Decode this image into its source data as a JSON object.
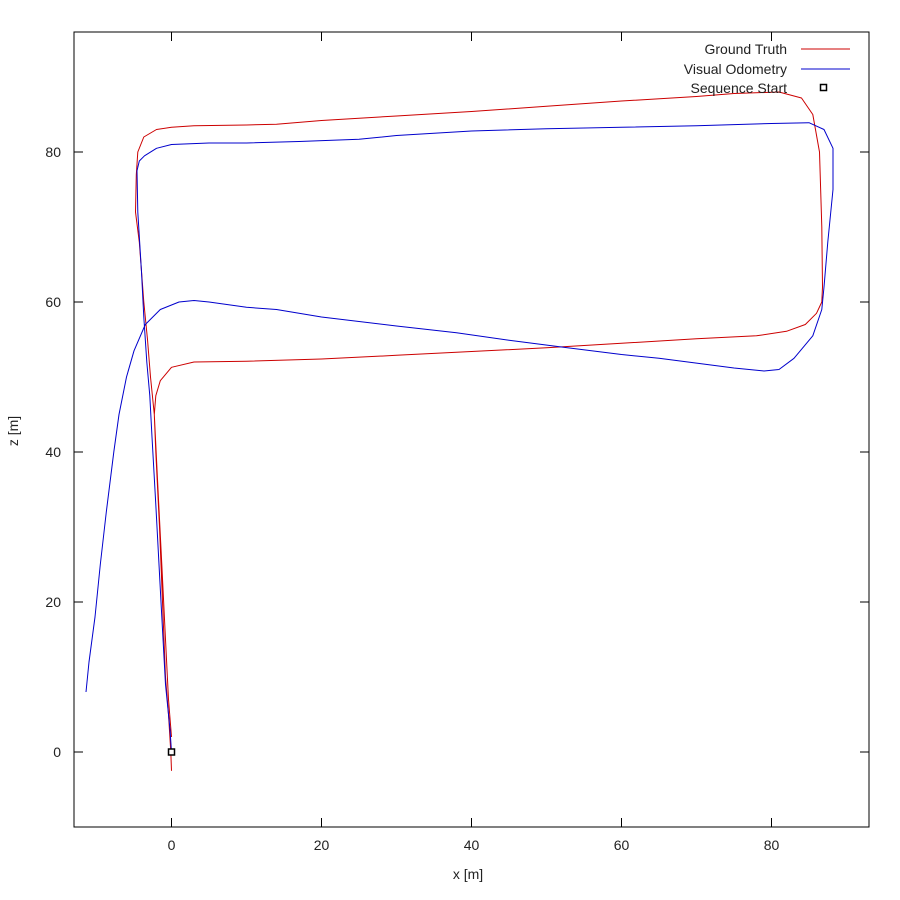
{
  "chart_data": {
    "type": "line",
    "xlabel": "x [m]",
    "ylabel": "z [m]",
    "xlim": [
      -13,
      93
    ],
    "ylim": [
      -10,
      96
    ],
    "xticks": [
      0,
      20,
      40,
      60,
      80
    ],
    "yticks": [
      0,
      20,
      40,
      60,
      80
    ],
    "grid": false,
    "legend_position": "top-right",
    "series": [
      {
        "name": "Ground Truth",
        "color": "#cc0000",
        "points": [
          [
            0,
            -2.5
          ],
          [
            -0.1,
            0
          ],
          [
            -0.4,
            5
          ],
          [
            -0.8,
            10
          ],
          [
            -1.2,
            20
          ],
          [
            -1.6,
            30
          ],
          [
            -2.1,
            40
          ],
          [
            -2.3,
            45
          ],
          [
            -2.1,
            47.5
          ],
          [
            -1.5,
            49.5
          ],
          [
            0,
            51.3
          ],
          [
            3,
            52
          ],
          [
            10,
            52.1
          ],
          [
            20,
            52.4
          ],
          [
            30,
            52.9
          ],
          [
            40,
            53.4
          ],
          [
            50,
            53.9
          ],
          [
            60,
            54.5
          ],
          [
            70,
            55.1
          ],
          [
            78,
            55.5
          ],
          [
            82,
            56.1
          ],
          [
            84.5,
            57
          ],
          [
            86,
            58.5
          ],
          [
            86.7,
            60
          ],
          [
            86.8,
            62
          ],
          [
            86.7,
            70
          ],
          [
            86.4,
            80
          ],
          [
            85.5,
            85
          ],
          [
            84,
            87.2
          ],
          [
            81,
            88
          ],
          [
            75,
            87.8
          ],
          [
            70,
            87.4
          ],
          [
            60,
            86.8
          ],
          [
            50,
            86.1
          ],
          [
            40,
            85.4
          ],
          [
            30,
            84.8
          ],
          [
            20,
            84.2
          ],
          [
            14,
            83.7
          ],
          [
            10,
            83.6
          ],
          [
            3,
            83.5
          ],
          [
            0,
            83.3
          ],
          [
            -2,
            83
          ],
          [
            -3.7,
            82
          ],
          [
            -4.5,
            80
          ],
          [
            -4.7,
            77
          ],
          [
            -4.8,
            72
          ],
          [
            -4.3,
            68
          ],
          [
            -3.7,
            60
          ],
          [
            -3.2,
            55
          ],
          [
            -2.8,
            50
          ],
          [
            -2.3,
            45
          ],
          [
            -1.8,
            35
          ],
          [
            -1.3,
            25
          ],
          [
            -0.8,
            15
          ],
          [
            -0.4,
            7
          ],
          [
            0,
            2
          ]
        ]
      },
      {
        "name": "Visual Odometry",
        "color": "#0000cc",
        "points": [
          [
            0,
            0
          ],
          [
            -0.2,
            3
          ],
          [
            -0.8,
            9
          ],
          [
            -1.4,
            20
          ],
          [
            -2.1,
            33
          ],
          [
            -2.6,
            42
          ],
          [
            -2.9,
            47.5
          ],
          [
            -3.3,
            52
          ],
          [
            -3.7,
            58
          ],
          [
            -4,
            64
          ],
          [
            -4.5,
            72
          ],
          [
            -4.6,
            77.5
          ],
          [
            -4.3,
            78.8
          ],
          [
            -3.6,
            79.5
          ],
          [
            -2,
            80.5
          ],
          [
            0,
            81
          ],
          [
            5,
            81.2
          ],
          [
            10,
            81.2
          ],
          [
            17,
            81.4
          ],
          [
            25,
            81.7
          ],
          [
            30,
            82.2
          ],
          [
            40,
            82.8
          ],
          [
            50,
            83.1
          ],
          [
            60,
            83.3
          ],
          [
            70,
            83.5
          ],
          [
            80,
            83.8
          ],
          [
            85,
            83.9
          ],
          [
            87,
            83
          ],
          [
            88.2,
            80.5
          ],
          [
            88.2,
            75
          ],
          [
            87.5,
            68
          ],
          [
            87,
            62
          ],
          [
            86.7,
            59
          ],
          [
            85.5,
            55.5
          ],
          [
            83,
            52.5
          ],
          [
            81,
            51
          ],
          [
            79,
            50.8
          ],
          [
            75,
            51.2
          ],
          [
            65,
            52.5
          ],
          [
            60,
            53
          ],
          [
            52,
            54
          ],
          [
            45,
            54.9
          ],
          [
            38,
            55.9
          ],
          [
            30,
            56.8
          ],
          [
            20,
            58
          ],
          [
            14,
            59
          ],
          [
            10,
            59.3
          ],
          [
            5,
            60
          ],
          [
            3,
            60.2
          ],
          [
            1,
            60
          ],
          [
            -1.5,
            59
          ],
          [
            -3.5,
            57
          ],
          [
            -5,
            53.5
          ],
          [
            -6,
            50
          ],
          [
            -7,
            45
          ],
          [
            -7.7,
            40
          ],
          [
            -8.7,
            32
          ],
          [
            -9.5,
            25
          ],
          [
            -10.2,
            18
          ],
          [
            -11,
            12
          ],
          [
            -11.2,
            10
          ],
          [
            -11.4,
            8
          ]
        ]
      }
    ],
    "markers": [
      {
        "name": "Sequence Start",
        "x": 0,
        "y": 0,
        "shape": "square",
        "color": "#000000"
      }
    ]
  }
}
